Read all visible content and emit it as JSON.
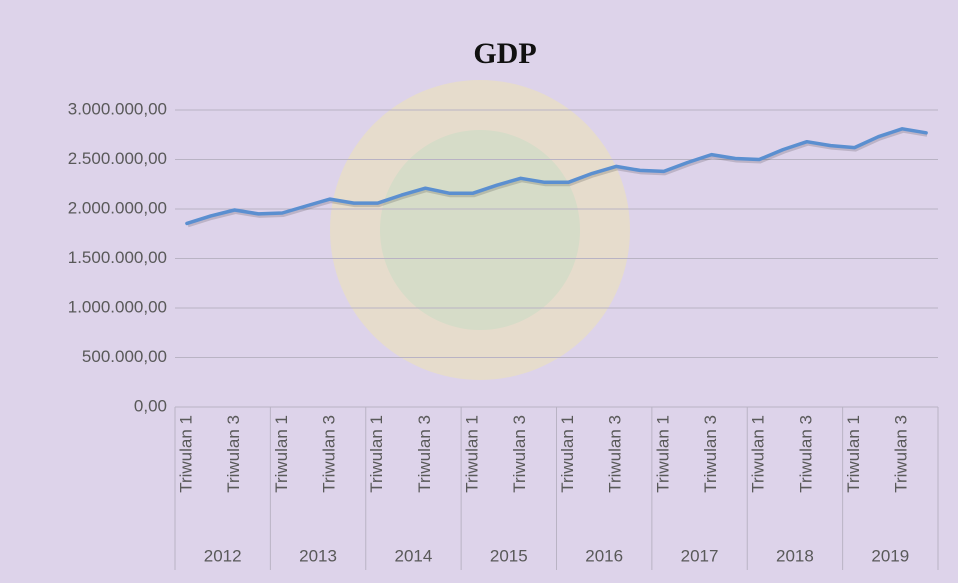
{
  "chart_data": {
    "type": "line",
    "title": "GDP",
    "categories": [
      "Triwulan 1",
      null,
      "Triwulan 3",
      null,
      "Triwulan 1",
      null,
      "Triwulan 3",
      null,
      "Triwulan 1",
      null,
      "Triwulan 3",
      null,
      "Triwulan 1",
      null,
      "Triwulan 3",
      null,
      "Triwulan 1",
      null,
      "Triwulan 3",
      null,
      "Triwulan 1",
      null,
      "Triwulan 3",
      null,
      "Triwulan 1",
      null,
      "Triwulan 3",
      null,
      "Triwulan 1",
      null,
      "Triwulan 3",
      null
    ],
    "years": [
      "2012",
      "2013",
      "2014",
      "2015",
      "2016",
      "2017",
      "2018",
      "2019"
    ],
    "values": [
      1855000,
      1930000,
      1990000,
      1950000,
      1960000,
      2030000,
      2100000,
      2060000,
      2060000,
      2140000,
      2210000,
      2160000,
      2160000,
      2240000,
      2310000,
      2270000,
      2270000,
      2360000,
      2430000,
      2390000,
      2380000,
      2470000,
      2550000,
      2510000,
      2500000,
      2600000,
      2680000,
      2640000,
      2620000,
      2730000,
      2810000,
      2770000
    ],
    "color": "#5b8fd0",
    "ylim": [
      0,
      3000000
    ],
    "yticks": [
      {
        "value": 0,
        "label": "0,00"
      },
      {
        "value": 500000,
        "label": "500.000,00"
      },
      {
        "value": 1000000,
        "label": "1.000.000,00"
      },
      {
        "value": 1500000,
        "label": "1.500.000,00"
      },
      {
        "value": 2000000,
        "label": "2.000.000,00"
      },
      {
        "value": 2500000,
        "label": "2.500.000,00"
      },
      {
        "value": 3000000,
        "label": "3.000.000,00"
      }
    ],
    "grid": true
  }
}
